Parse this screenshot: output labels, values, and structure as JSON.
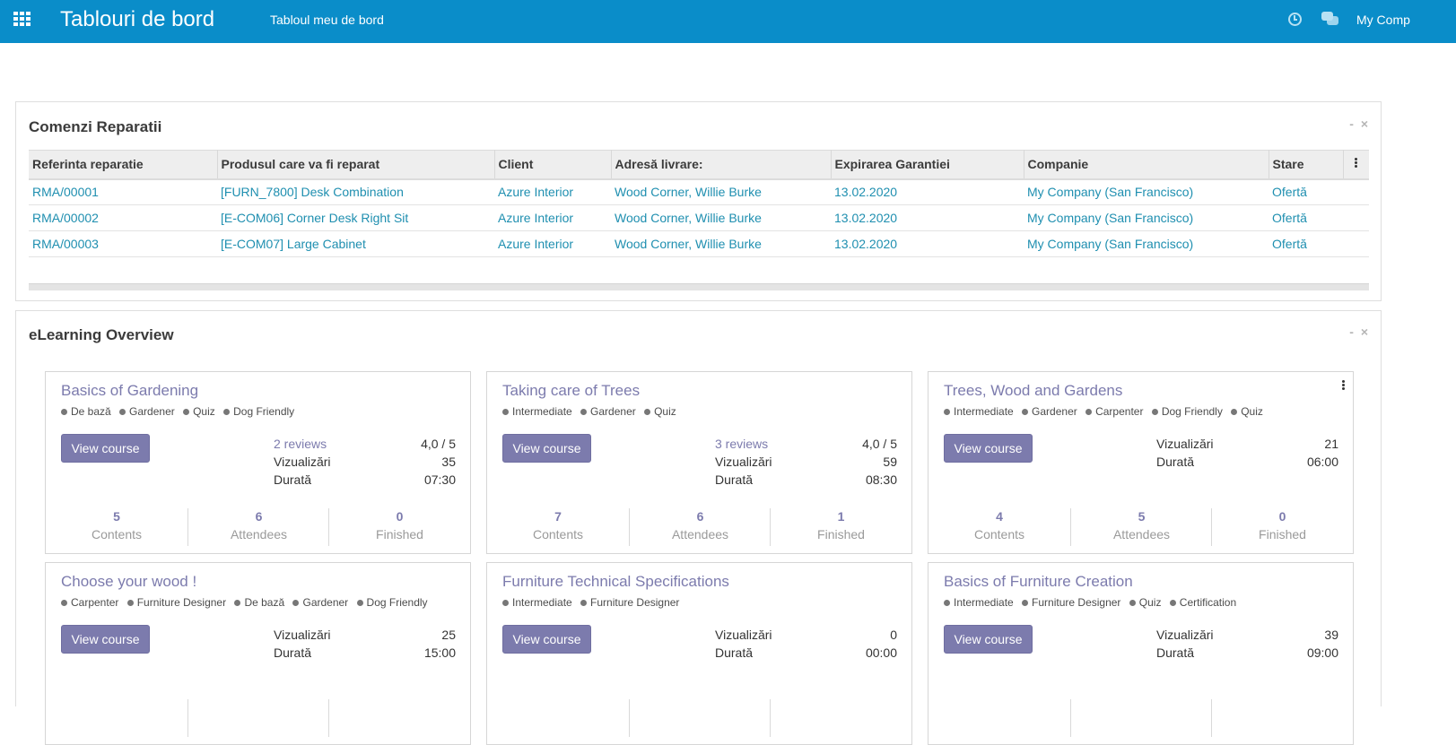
{
  "navbar": {
    "brand": "Tablouri de bord",
    "menu_item": "Tabloul meu de bord",
    "company": "My Comp"
  },
  "repairs_panel": {
    "title": "Comenzi Reparatii",
    "controls": {
      "minimize": "-",
      "close": "×"
    },
    "columns": [
      "Referinta reparatie",
      "Produsul care va fi reparat",
      "Client",
      "Adresă livrare:",
      "Expirarea Garantiei",
      "Companie",
      "Stare"
    ],
    "rows": [
      [
        "RMA/00001",
        "[FURN_7800] Desk Combination",
        "Azure Interior",
        "Wood Corner, Willie Burke",
        "13.02.2020",
        "My Company (San Francisco)",
        "Ofertă"
      ],
      [
        "RMA/00002",
        "[E-COM06] Corner Desk Right Sit",
        "Azure Interior",
        "Wood Corner, Willie Burke",
        "13.02.2020",
        "My Company (San Francisco)",
        "Ofertă"
      ],
      [
        "RMA/00003",
        "[E-COM07] Large Cabinet",
        "Azure Interior",
        "Wood Corner, Willie Burke",
        "13.02.2020",
        "My Company (San Francisco)",
        "Ofertă"
      ]
    ]
  },
  "elearning_panel": {
    "title": "eLearning Overview",
    "controls": {
      "minimize": "-",
      "close": "×"
    },
    "button_label": "View course",
    "labels": {
      "views": "Vizualizări",
      "duration": "Durată",
      "contents": "Contents",
      "attendees": "Attendees",
      "finished": "Finished"
    },
    "courses": [
      {
        "title": "Basics of Gardening",
        "tags": [
          "De bază",
          "Gardener",
          "Quiz",
          "Dog Friendly"
        ],
        "reviews": "2 reviews",
        "rating": "4,0 / 5",
        "views": "35",
        "duration": "07:30",
        "contents": "5",
        "attendees": "6",
        "finished": "0"
      },
      {
        "title": "Taking care of Trees",
        "tags": [
          "Intermediate",
          "Gardener",
          "Quiz"
        ],
        "reviews": "3 reviews",
        "rating": "4,0 / 5",
        "views": "59",
        "duration": "08:30",
        "contents": "7",
        "attendees": "6",
        "finished": "1"
      },
      {
        "title": "Trees, Wood and Gardens",
        "tags": [
          "Intermediate",
          "Gardener",
          "Carpenter",
          "Dog Friendly",
          "Quiz"
        ],
        "views": "21",
        "duration": "06:00",
        "contents": "4",
        "attendees": "5",
        "finished": "0"
      },
      {
        "title": "Choose your wood !",
        "tags": [
          "Carpenter",
          "Furniture Designer",
          "De bază",
          "Gardener",
          "Dog Friendly"
        ],
        "views": "25",
        "duration": "15:00"
      },
      {
        "title": "Furniture Technical Specifications",
        "tags": [
          "Intermediate",
          "Furniture Designer"
        ],
        "views": "0",
        "duration": "00:00"
      },
      {
        "title": "Basics of Furniture Creation",
        "tags": [
          "Intermediate",
          "Furniture Designer",
          "Quiz",
          "Certification"
        ],
        "views": "39",
        "duration": "09:00"
      }
    ]
  }
}
